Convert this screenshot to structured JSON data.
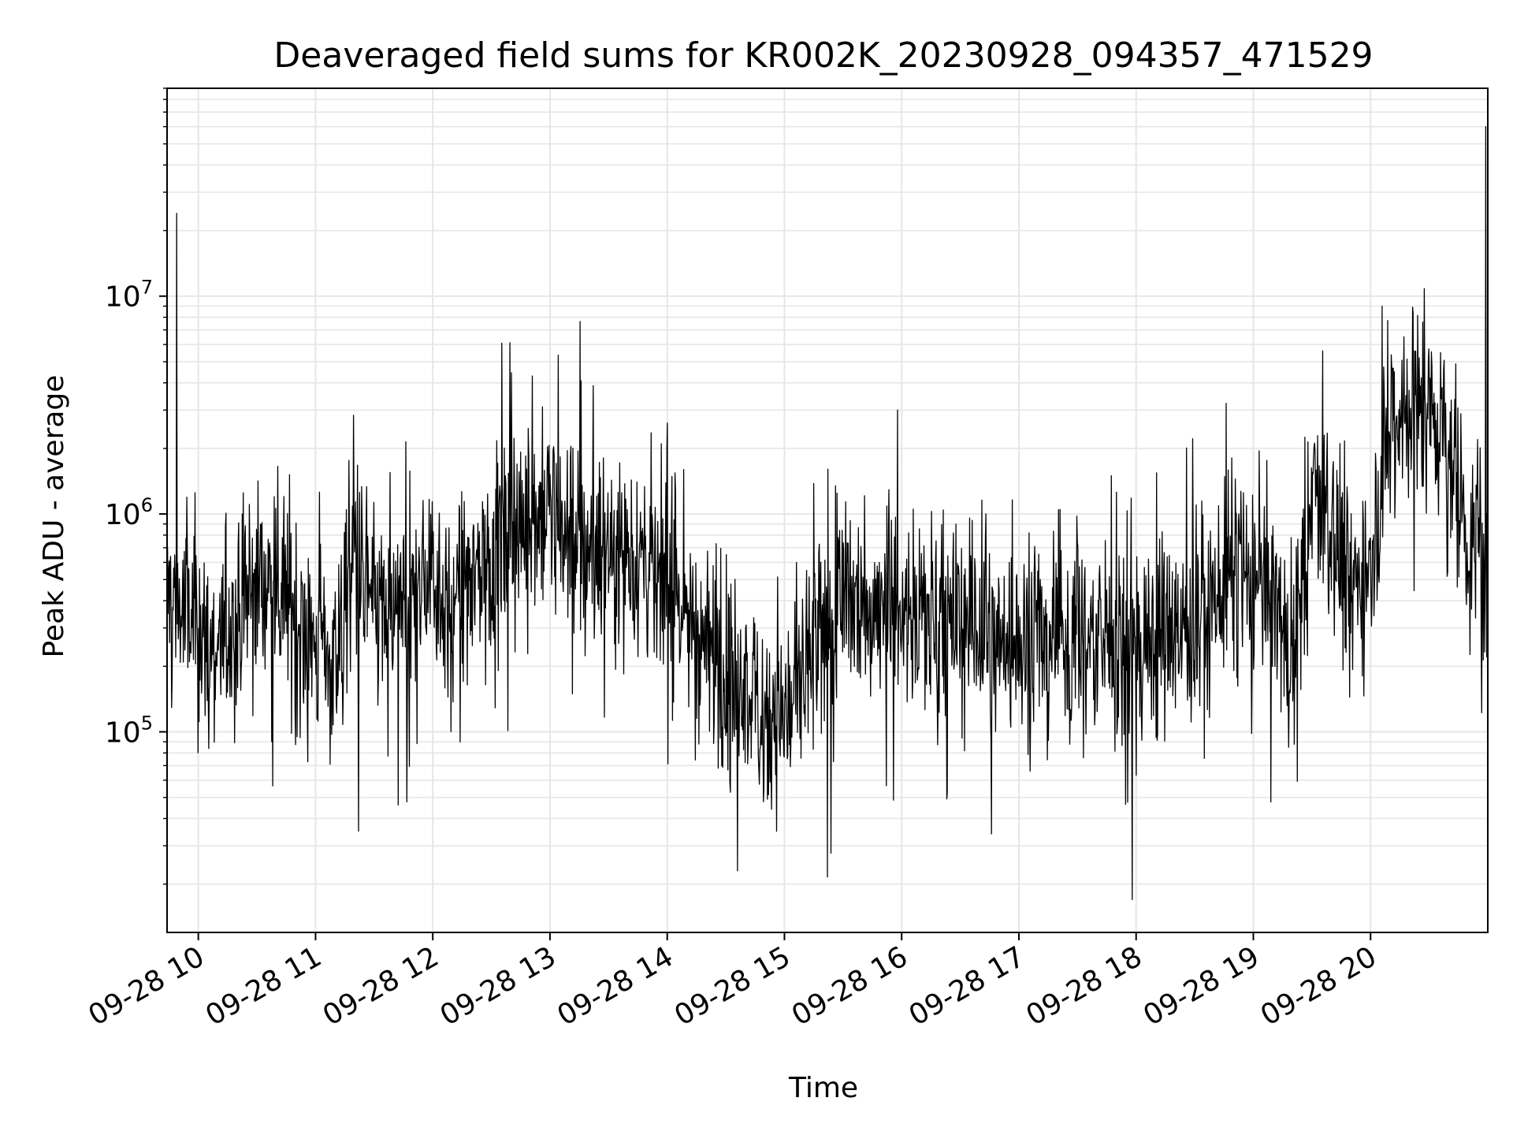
{
  "chart_data": {
    "type": "line",
    "title": "Deaveraged field sums for KR002K_20230928_094357_471529",
    "xlabel": "Time",
    "ylabel": "Peak ADU - average",
    "x_range": [
      "2023-09-28T09:44",
      "2023-09-28T21:00"
    ],
    "y_scale": "log",
    "y_range": [
      12000,
      90000000
    ],
    "grid": true,
    "line_color": "#000000",
    "x_ticks": [
      {
        "value": "2023-09-28T10:00",
        "label": "09-28 10"
      },
      {
        "value": "2023-09-28T11:00",
        "label": "09-28 11"
      },
      {
        "value": "2023-09-28T12:00",
        "label": "09-28 12"
      },
      {
        "value": "2023-09-28T13:00",
        "label": "09-28 13"
      },
      {
        "value": "2023-09-28T14:00",
        "label": "09-28 14"
      },
      {
        "value": "2023-09-28T15:00",
        "label": "09-28 15"
      },
      {
        "value": "2023-09-28T16:00",
        "label": "09-28 16"
      },
      {
        "value": "2023-09-28T17:00",
        "label": "09-28 17"
      },
      {
        "value": "2023-09-28T18:00",
        "label": "09-28 18"
      },
      {
        "value": "2023-09-28T19:00",
        "label": "09-28 19"
      },
      {
        "value": "2023-09-28T20:00",
        "label": "09-28 20"
      }
    ],
    "y_ticks": [
      {
        "value": 100000,
        "base": "10",
        "exp": "5"
      },
      {
        "value": 1000000,
        "base": "10",
        "exp": "6"
      },
      {
        "value": 10000000,
        "base": "10",
        "exp": "7"
      }
    ],
    "series": [
      {
        "x": [
          "09:44",
          "09:50",
          "10:00",
          "10:10",
          "10:20",
          "10:30",
          "10:40",
          "10:50",
          "11:00",
          "11:10",
          "11:20",
          "11:30",
          "11:40",
          "11:50",
          "12:00",
          "12:10",
          "12:20",
          "12:30",
          "12:40",
          "12:50",
          "13:00",
          "13:10",
          "13:20",
          "13:30",
          "13:40",
          "13:50",
          "14:00",
          "14:10",
          "14:20",
          "14:30",
          "14:40",
          "14:50",
          "15:00",
          "15:10",
          "15:20",
          "15:30",
          "15:40",
          "15:50",
          "16:00",
          "16:10",
          "16:20",
          "16:30",
          "16:40",
          "16:50",
          "17:00",
          "17:10",
          "17:20",
          "17:30",
          "17:40",
          "17:50",
          "18:00",
          "18:10",
          "18:20",
          "18:30",
          "18:40",
          "18:50",
          "19:00",
          "19:10",
          "19:20",
          "19:30",
          "19:40",
          "19:50",
          "20:00",
          "20:10",
          "20:20",
          "20:30",
          "20:40",
          "20:50",
          "21:00"
        ],
        "values": [
          420000,
          380000,
          260000,
          240000,
          300000,
          520000,
          480000,
          350000,
          260000,
          200000,
          700000,
          380000,
          300000,
          420000,
          600000,
          300000,
          520000,
          640000,
          780000,
          1000000,
          950000,
          820000,
          760000,
          720000,
          680000,
          600000,
          520000,
          340000,
          250000,
          190000,
          150000,
          130000,
          120000,
          170000,
          260000,
          360000,
          400000,
          380000,
          400000,
          360000,
          330000,
          300000,
          280000,
          260000,
          260000,
          280000,
          300000,
          280000,
          260000,
          250000,
          240000,
          260000,
          280000,
          300000,
          420000,
          520000,
          500000,
          420000,
          200000,
          1000000,
          800000,
          450000,
          650000,
          2800000,
          3300000,
          3000000,
          2100000,
          700000,
          500000
        ]
      }
    ],
    "spikes": [
      {
        "x": "09:49",
        "value": 24000000
      },
      {
        "x": "20:59",
        "value": 60000000
      },
      {
        "x": "17:58",
        "value": 17000
      },
      {
        "x": "14:36",
        "value": 23000
      },
      {
        "x": "11:22",
        "value": 35000
      },
      {
        "x": "16:46",
        "value": 34000
      },
      {
        "x": "12:51",
        "value": 4300000
      },
      {
        "x": "15:58",
        "value": 3000000
      },
      {
        "x": "20:06",
        "value": 9000000
      }
    ]
  }
}
